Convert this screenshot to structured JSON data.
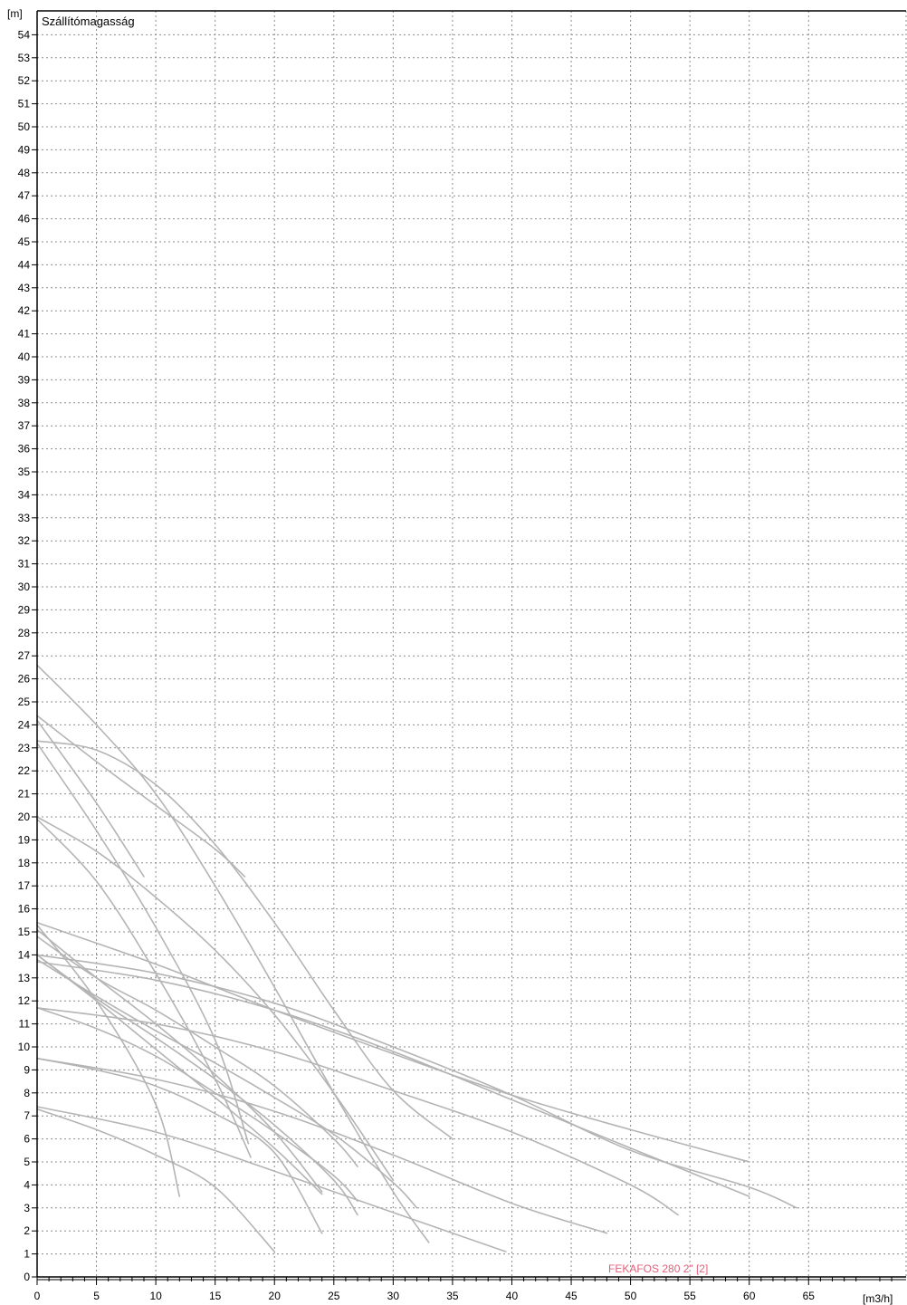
{
  "chart_data": {
    "type": "line",
    "title": "Szállítómagasság",
    "ylabel": "[m]",
    "xlabel": "[m3/h]",
    "xlim": [
      0,
      72
    ],
    "ylim": [
      0,
      55
    ],
    "x_ticks": [
      "0",
      "5",
      "10",
      "15",
      "20",
      "25",
      "30",
      "35",
      "40",
      "45",
      "50",
      "55",
      "60",
      "65"
    ],
    "y_ticks": [
      "0",
      "1",
      "2",
      "3",
      "4",
      "5",
      "6",
      "7",
      "8",
      "9",
      "10",
      "11",
      "12",
      "13",
      "14",
      "15",
      "16",
      "17",
      "18",
      "19",
      "20",
      "21",
      "22",
      "23",
      "24",
      "25",
      "26",
      "27",
      "28",
      "29",
      "30",
      "31",
      "32",
      "33",
      "34",
      "35",
      "36",
      "37",
      "38",
      "39",
      "40",
      "41",
      "42",
      "43",
      "44",
      "45",
      "46",
      "47",
      "48",
      "49",
      "50",
      "51",
      "52",
      "53",
      "54"
    ],
    "grid": true,
    "selected_label": "FEKAFOS 280 2\" [2]",
    "colors": {
      "curves": "#b4b4b4",
      "grid": "#8c8c8c",
      "axis": "#000000",
      "selected_label": "#e0607a"
    },
    "series": [
      {
        "points": [
          [
            0,
            26.6
          ],
          [
            5,
            24.0
          ],
          [
            10,
            21.0
          ],
          [
            15,
            17.0
          ],
          [
            20,
            12.6
          ],
          [
            25,
            8.0
          ],
          [
            30,
            3.7
          ],
          [
            33,
            1.5
          ]
        ]
      },
      {
        "points": [
          [
            0,
            24.2
          ],
          [
            5,
            20.6
          ],
          [
            9,
            17.4
          ]
        ]
      },
      {
        "points": [
          [
            0,
            23.3
          ],
          [
            5,
            22.9
          ],
          [
            10,
            21.4
          ],
          [
            15,
            18.8
          ],
          [
            20,
            15.4
          ],
          [
            25,
            11.6
          ],
          [
            30,
            8.1
          ],
          [
            35,
            6.0
          ]
        ]
      },
      {
        "points": [
          [
            0,
            24.4
          ],
          [
            5,
            22.4
          ],
          [
            10,
            20.5
          ],
          [
            15,
            18.6
          ],
          [
            17.5,
            17.4
          ]
        ]
      },
      {
        "points": [
          [
            0,
            20.0
          ],
          [
            5,
            18.5
          ],
          [
            10,
            16.5
          ],
          [
            15,
            14.2
          ],
          [
            20,
            11.4
          ],
          [
            25,
            8.0
          ],
          [
            30,
            4.2
          ]
        ]
      },
      {
        "points": [
          [
            0,
            23.2
          ],
          [
            5,
            19.4
          ],
          [
            10,
            15.2
          ],
          [
            15,
            10.3
          ],
          [
            17.8,
            5.8
          ]
        ]
      },
      {
        "points": [
          [
            0,
            19.9
          ],
          [
            5,
            17.2
          ],
          [
            10,
            13.2
          ],
          [
            15,
            8.6
          ],
          [
            18,
            5.2
          ]
        ]
      },
      {
        "points": [
          [
            0,
            15.4
          ],
          [
            10,
            13.6
          ],
          [
            20,
            11.6
          ],
          [
            30,
            9.7
          ],
          [
            40,
            7.9
          ],
          [
            50,
            6.4
          ],
          [
            60,
            5.0
          ]
        ]
      },
      {
        "points": [
          [
            0,
            14.0
          ],
          [
            10,
            13.2
          ],
          [
            20,
            11.9
          ],
          [
            30,
            10.0
          ],
          [
            40,
            7.9
          ],
          [
            50,
            5.5
          ],
          [
            60,
            3.9
          ],
          [
            64,
            3.0
          ]
        ]
      },
      {
        "points": [
          [
            0,
            13.7
          ],
          [
            10,
            12.9
          ],
          [
            20,
            11.6
          ],
          [
            30,
            9.8
          ],
          [
            40,
            7.7
          ],
          [
            50,
            5.6
          ],
          [
            60,
            3.5
          ]
        ]
      },
      {
        "points": [
          [
            0,
            11.7
          ],
          [
            10,
            11.0
          ],
          [
            20,
            9.8
          ],
          [
            30,
            8.1
          ],
          [
            40,
            6.3
          ],
          [
            50,
            4.0
          ],
          [
            54,
            2.7
          ]
        ]
      },
      {
        "points": [
          [
            0,
            14.8
          ],
          [
            5,
            13.0
          ],
          [
            10,
            11.6
          ],
          [
            15,
            10.0
          ],
          [
            20,
            8.3
          ],
          [
            25,
            6.0
          ],
          [
            27,
            4.8
          ]
        ]
      },
      {
        "points": [
          [
            0,
            15.1
          ],
          [
            5,
            13.0
          ],
          [
            10,
            11.0
          ],
          [
            15,
            8.8
          ],
          [
            20,
            6.3
          ],
          [
            24,
            3.7
          ]
        ]
      },
      {
        "points": [
          [
            0,
            14.0
          ],
          [
            5,
            12.0
          ],
          [
            10,
            9.9
          ],
          [
            15,
            7.8
          ],
          [
            20,
            5.6
          ],
          [
            24,
            3.6
          ]
        ]
      },
      {
        "points": [
          [
            0,
            14.0
          ],
          [
            5,
            12.1
          ],
          [
            10,
            10.4
          ],
          [
            15,
            8.6
          ],
          [
            20,
            6.6
          ],
          [
            25,
            4.2
          ],
          [
            27,
            2.7
          ]
        ]
      },
      {
        "points": [
          [
            0,
            13.8
          ],
          [
            5,
            12.2
          ],
          [
            10,
            10.7
          ],
          [
            15,
            9.3
          ],
          [
            20,
            7.8
          ],
          [
            25,
            6.2
          ],
          [
            30,
            4.1
          ],
          [
            32,
            3.0
          ]
        ]
      },
      {
        "points": [
          [
            0,
            11.7
          ],
          [
            5,
            10.8
          ],
          [
            10,
            9.6
          ],
          [
            15,
            8.0
          ],
          [
            20,
            6.3
          ],
          [
            25,
            4.4
          ],
          [
            27,
            3.3
          ]
        ]
      },
      {
        "points": [
          [
            0,
            9.5
          ],
          [
            10,
            8.6
          ],
          [
            20,
            7.2
          ],
          [
            30,
            5.3
          ],
          [
            40,
            3.2
          ],
          [
            48,
            1.9
          ]
        ]
      },
      {
        "points": [
          [
            0,
            9.5
          ],
          [
            5,
            9.0
          ],
          [
            10,
            8.3
          ],
          [
            15,
            7.1
          ],
          [
            20,
            5.4
          ],
          [
            24,
            1.9
          ]
        ]
      },
      {
        "points": [
          [
            0,
            7.4
          ],
          [
            10,
            6.3
          ],
          [
            20,
            4.6
          ],
          [
            30,
            2.8
          ],
          [
            39.5,
            1.1
          ]
        ]
      },
      {
        "points": [
          [
            0,
            7.3
          ],
          [
            5,
            6.4
          ],
          [
            10,
            5.3
          ],
          [
            15,
            3.9
          ],
          [
            20,
            1.1
          ]
        ]
      },
      {
        "points": [
          [
            0,
            15.3
          ],
          [
            5,
            12.0
          ],
          [
            10,
            7.5
          ],
          [
            12,
            3.5
          ]
        ]
      }
    ]
  }
}
